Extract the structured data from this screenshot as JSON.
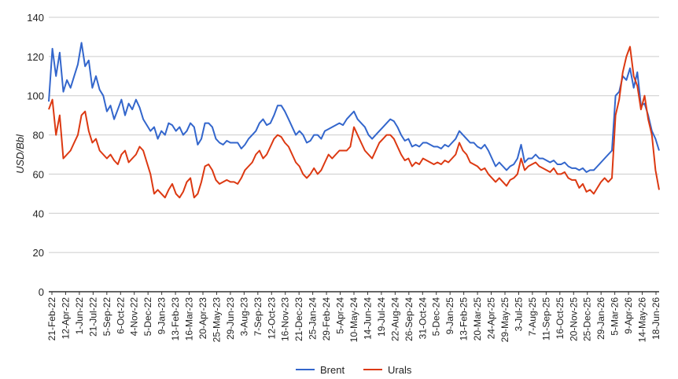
{
  "chart_data": {
    "type": "line",
    "title": "",
    "ylabel": "USD/Bbl",
    "xlabel": "",
    "ylim": [
      0,
      140
    ],
    "yticks": [
      0,
      20,
      40,
      60,
      80,
      100,
      120,
      140
    ],
    "grid": true,
    "legend_position": "bottom",
    "x_tick_labels": [
      "21-Feb-22",
      "12-Apr-22",
      "1-Jun-22",
      "21-Jul-22",
      "5-Sep-22",
      "6-Oct-22",
      "4-Nov-22",
      "5-Dec-22",
      "9-Jan-23",
      "13-Feb-23",
      "16-Mar-23",
      "20-Apr-23",
      "25-May-23",
      "29-Jun-23",
      "3-Aug-23",
      "7-Sep-23",
      "12-Oct-23",
      "16-Nov-23",
      "21-Dec-23",
      "25-Jan-24",
      "29-Feb-24",
      "5-Apr-24",
      "10-May-24",
      "14-Jun-24",
      "19-Jul-24",
      "22-Aug-24",
      "26-Sep-24",
      "31-Oct-24",
      "5-Dec-24",
      "9-Jan-25",
      "13-Feb-25",
      "20-Mar-25",
      "24-Apr-25",
      "29-May-25",
      "3-Jul-25",
      "7-Aug-25",
      "11-Sep-25",
      "16-Oct-25",
      "20-Nov-25",
      "25-Dec-25",
      "29-Jan-26",
      "5-Mar-26",
      "9-Apr-26",
      "14-May-26",
      "18-Jun-26"
    ],
    "series": [
      {
        "name": "Brent",
        "color": "#3366cc",
        "values": [
          97,
          124,
          110,
          122,
          102,
          108,
          104,
          110,
          116,
          127,
          115,
          118,
          104,
          110,
          103,
          100,
          92,
          95,
          88,
          93,
          98,
          90,
          96,
          93,
          98,
          94,
          88,
          85,
          82,
          84,
          78,
          82,
          80,
          86,
          85,
          82,
          84,
          80,
          82,
          86,
          84,
          75,
          78,
          86,
          86,
          84,
          78,
          76,
          75,
          77,
          76,
          76,
          76,
          73,
          75,
          78,
          80,
          82,
          86,
          88,
          85,
          86,
          90,
          95,
          95,
          92,
          88,
          84,
          80,
          82,
          80,
          76,
          77,
          80,
          80,
          78,
          82,
          83,
          84,
          85,
          86,
          85,
          88,
          90,
          92,
          88,
          86,
          84,
          80,
          78,
          80,
          82,
          84,
          86,
          88,
          87,
          84,
          80,
          77,
          78,
          74,
          75,
          74,
          76,
          76,
          75,
          74,
          74,
          73,
          75,
          74,
          76,
          78,
          82,
          80,
          78,
          76,
          76,
          74,
          73,
          75,
          72,
          68,
          64,
          66,
          64,
          62,
          64,
          65,
          68,
          75,
          66,
          68,
          68,
          70,
          68,
          68,
          67,
          66,
          67,
          65,
          65,
          66,
          64,
          63,
          63,
          62,
          63,
          61,
          62,
          62,
          64,
          66,
          68,
          70,
          72,
          100,
          102,
          110,
          108,
          114,
          104,
          112,
          95,
          96,
          90,
          82,
          78,
          72
        ]
      },
      {
        "name": "Urals",
        "color": "#dc3912",
        "values": [
          93,
          98,
          80,
          90,
          68,
          70,
          72,
          76,
          80,
          90,
          92,
          82,
          76,
          78,
          72,
          70,
          68,
          70,
          67,
          65,
          70,
          72,
          66,
          68,
          70,
          74,
          72,
          66,
          60,
          50,
          52,
          50,
          48,
          52,
          55,
          50,
          48,
          51,
          56,
          58,
          48,
          50,
          56,
          64,
          65,
          62,
          57,
          55,
          56,
          57,
          56,
          56,
          55,
          58,
          62,
          64,
          66,
          70,
          72,
          68,
          70,
          74,
          78,
          80,
          79,
          76,
          74,
          70,
          66,
          64,
          60,
          58,
          60,
          63,
          60,
          62,
          66,
          70,
          68,
          70,
          72,
          72,
          72,
          74,
          84,
          80,
          76,
          72,
          70,
          68,
          72,
          76,
          78,
          80,
          80,
          78,
          74,
          70,
          67,
          68,
          64,
          66,
          65,
          68,
          67,
          66,
          65,
          66,
          65,
          67,
          66,
          68,
          70,
          76,
          72,
          70,
          66,
          65,
          64,
          62,
          63,
          60,
          58,
          56,
          58,
          56,
          54,
          57,
          58,
          60,
          68,
          62,
          64,
          65,
          66,
          64,
          63,
          62,
          61,
          63,
          60,
          60,
          61,
          58,
          57,
          57,
          53,
          55,
          51,
          52,
          50,
          53,
          56,
          58,
          56,
          58,
          90,
          98,
          112,
          120,
          125,
          110,
          105,
          93,
          100,
          88,
          80,
          62,
          52
        ]
      }
    ]
  }
}
